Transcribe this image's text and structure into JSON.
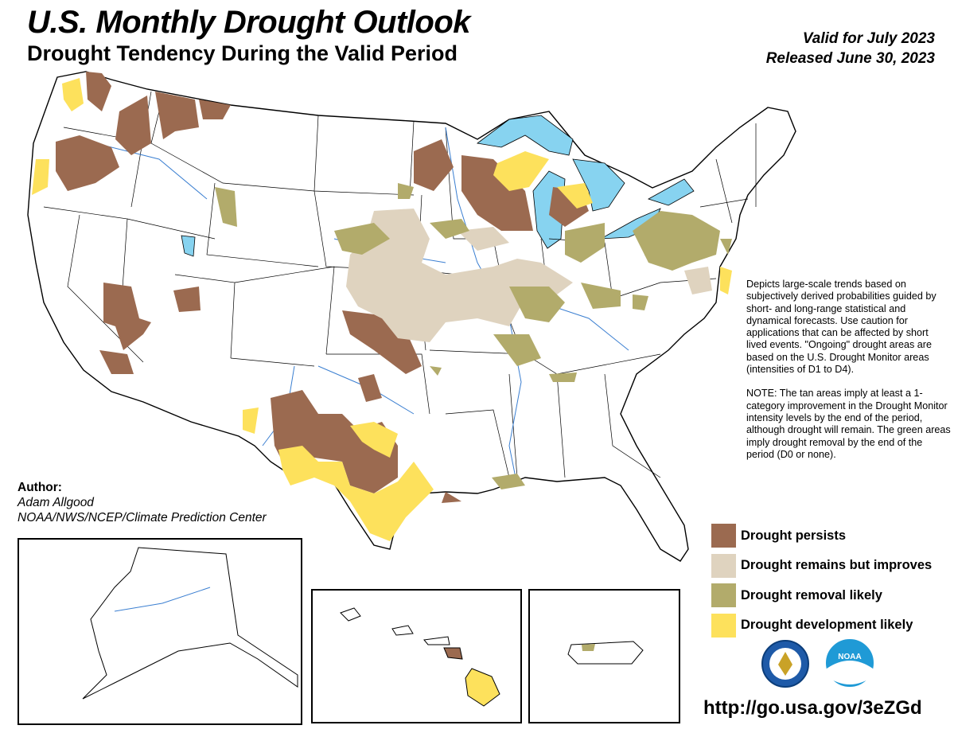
{
  "header": {
    "title": "U.S. Monthly Drought Outlook",
    "subtitle": "Drought Tendency During the Valid Period",
    "valid_line": "Valid for July 2023",
    "released_line": "Released June 30, 2023"
  },
  "description": {
    "paragraph1": "Depicts large-scale trends based on subjectively derived probabilities guided by short- and long-range statistical and dynamical forecasts. Use caution for applications that can be affected by short lived events. \"Ongoing\" drought areas are based on the U.S. Drought Monitor areas (intensities of D1 to D4).",
    "paragraph2": "NOTE: The tan areas imply at least a 1-category improvement in the Drought Monitor intensity levels by the end of the period, although drought will remain. The green areas imply drought removal by the end of the period (D0 or none)."
  },
  "legend": {
    "items": [
      {
        "label": "Drought persists",
        "color": "#9b6a50"
      },
      {
        "label": "Drought remains but improves",
        "color": "#dfd3bf"
      },
      {
        "label": "Drought removal likely",
        "color": "#b2ab6b"
      },
      {
        "label": "Drought development likely",
        "color": "#fde15c"
      }
    ]
  },
  "author": {
    "heading": "Author:",
    "name": "Adam Allgood",
    "organization": "NOAA/NWS/NCEP/Climate Prediction Center"
  },
  "footer": {
    "url": "http://go.usa.gov/3eZGd"
  },
  "logos": {
    "doc": "department-of-commerce-seal",
    "noaa": "noaa-logo",
    "noaa_text": "NOAA"
  },
  "colors": {
    "persists": "#9b6a50",
    "improves": "#dfd3bf",
    "removal": "#b2ab6b",
    "development": "#fde15c",
    "water": "#87d3f0",
    "border": "#000000",
    "river": "#3b7fd1"
  }
}
